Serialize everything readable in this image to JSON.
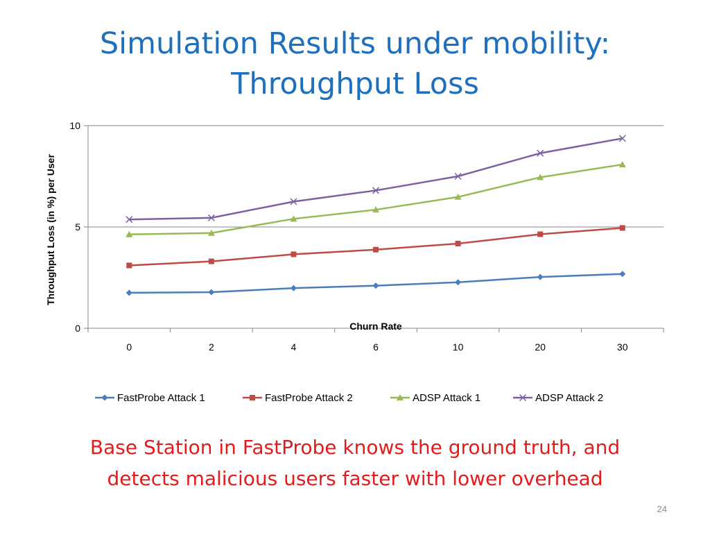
{
  "slide": {
    "title_line1": "Simulation Results under mobility:",
    "title_line2": "Throughput Loss",
    "footer_line1": "Base Station in FastProbe knows the ground truth, and",
    "footer_line2": "detects malicious users faster with lower overhead",
    "page_number": "24"
  },
  "chart_data": {
    "type": "line",
    "title": "",
    "xlabel": "Churn Rate",
    "ylabel": "Throughput Loss (in %) per User",
    "categories": [
      "0",
      "2",
      "4",
      "6",
      "10",
      "20",
      "30"
    ],
    "ylim": [
      0,
      10
    ],
    "yticks": [
      0,
      5,
      10
    ],
    "grid": "horizontal",
    "legend_position": "bottom",
    "series": [
      {
        "name": "FastProbe Attack 1",
        "color": "#4a7ebb",
        "marker": "diamond",
        "values": [
          1.75,
          1.78,
          1.98,
          2.1,
          2.27,
          2.53,
          2.68
        ]
      },
      {
        "name": "FastProbe Attack 2",
        "color": "#be4b48",
        "marker": "square",
        "values": [
          3.1,
          3.3,
          3.65,
          3.88,
          4.18,
          4.64,
          4.95
        ]
      },
      {
        "name": "ADSP Attack 1",
        "color": "#98b954",
        "marker": "triangle",
        "values": [
          4.63,
          4.7,
          5.4,
          5.85,
          6.48,
          7.45,
          8.08
        ]
      },
      {
        "name": "ADSP Attack 2",
        "color": "#7d60a0",
        "marker": "x",
        "values": [
          5.37,
          5.45,
          6.25,
          6.8,
          7.5,
          8.64,
          9.37
        ]
      }
    ]
  }
}
